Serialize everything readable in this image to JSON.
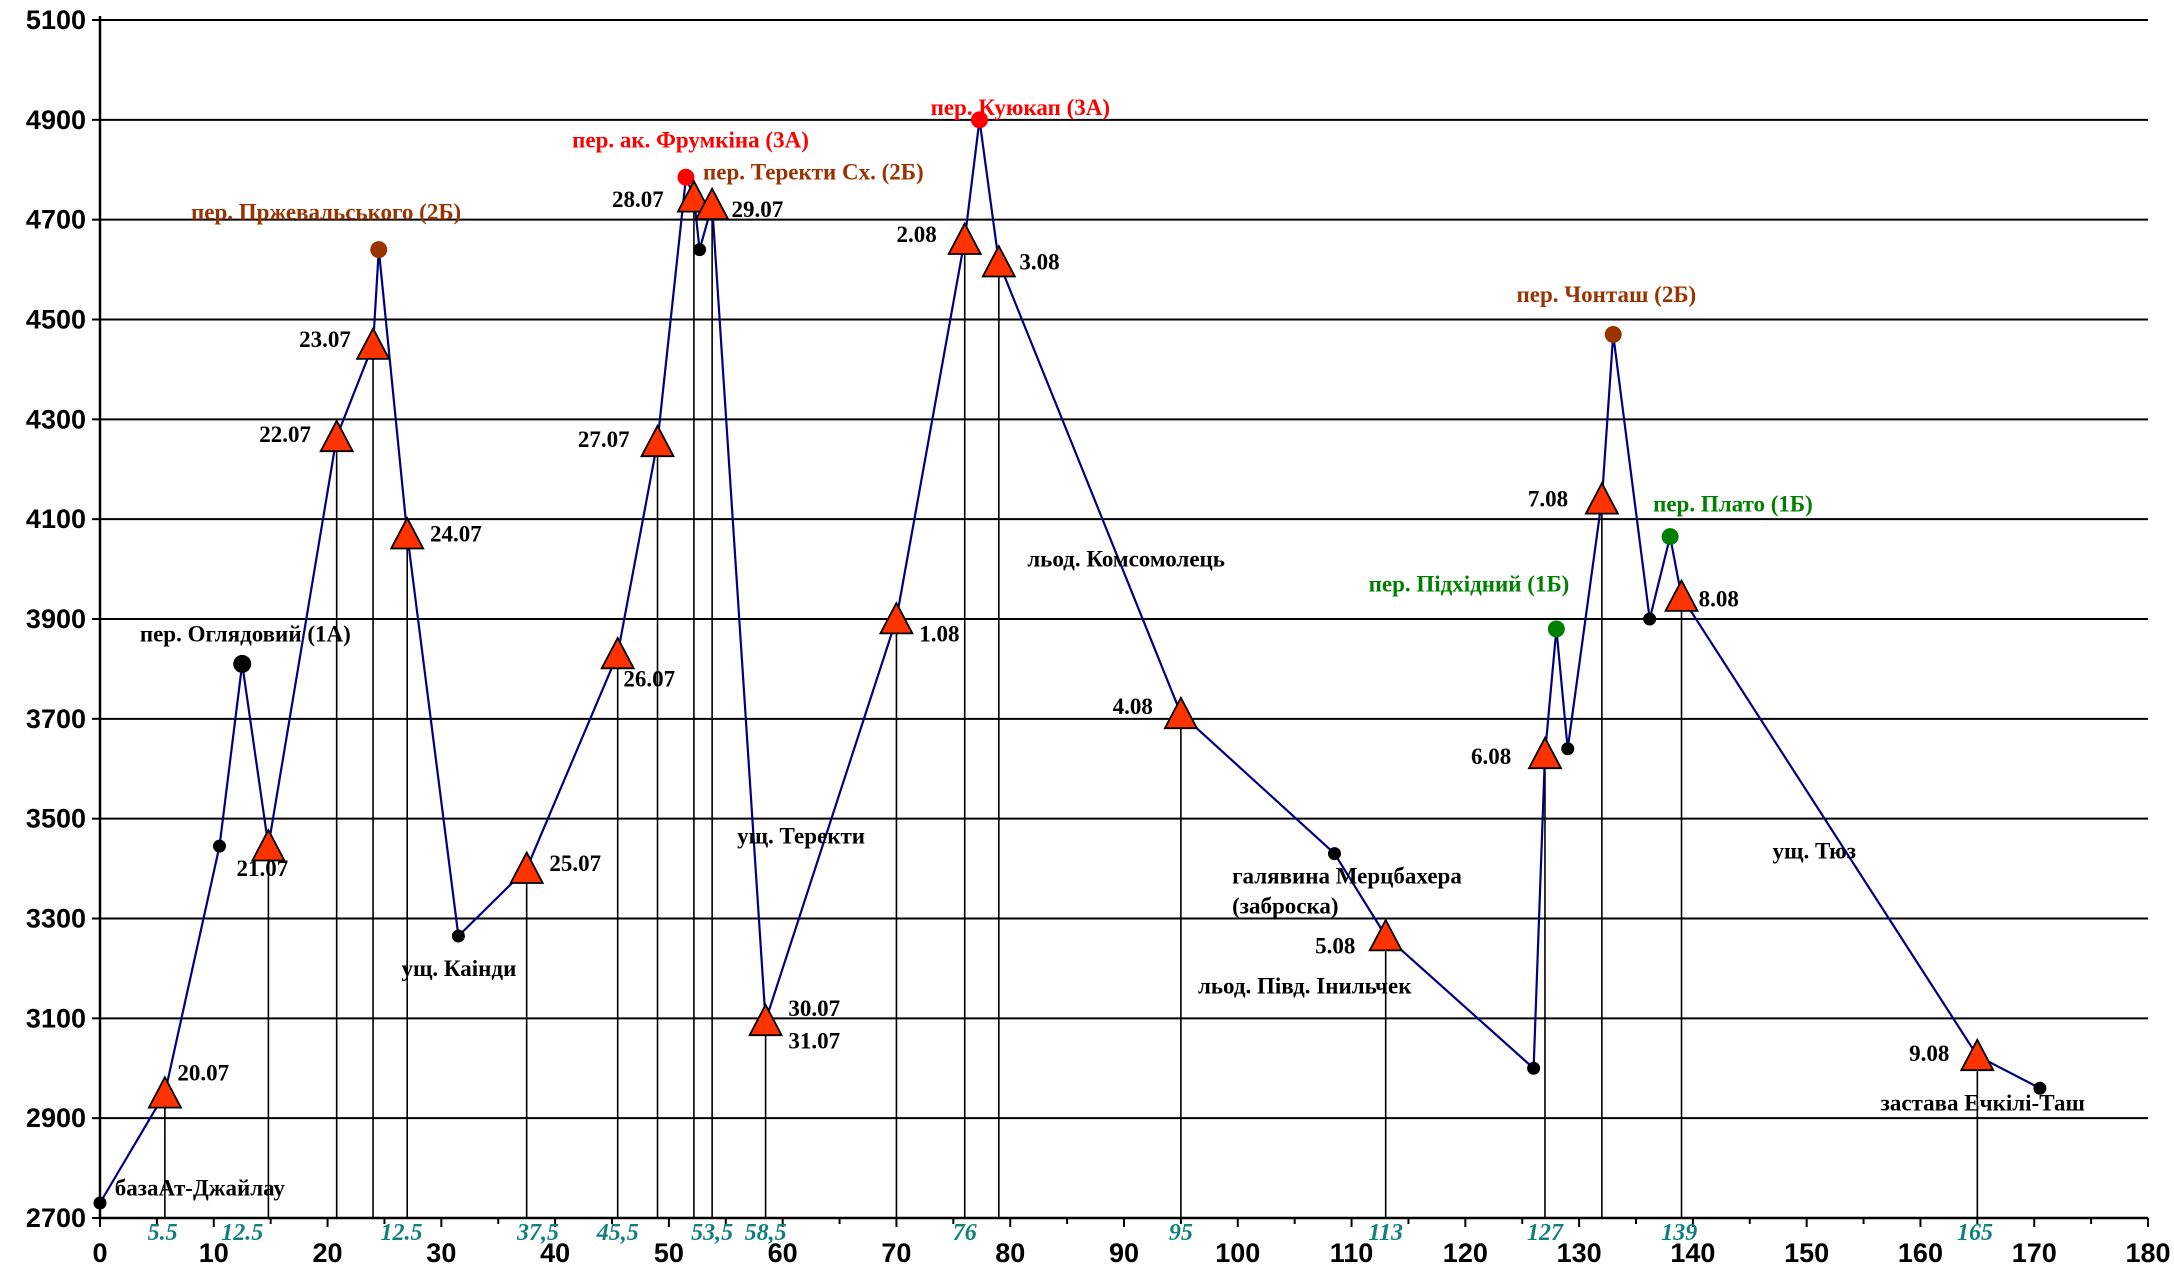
{
  "chart_data": {
    "type": "line",
    "xlim": [
      0,
      180
    ],
    "ylim": [
      2700,
      5100
    ],
    "x_ticks": [
      0,
      10,
      20,
      30,
      40,
      50,
      60,
      70,
      80,
      90,
      100,
      110,
      120,
      130,
      140,
      150,
      160,
      170,
      180
    ],
    "y_ticks": [
      2700,
      2900,
      3100,
      3300,
      3500,
      3700,
      3900,
      4100,
      4300,
      4500,
      4700,
      4900,
      5100
    ],
    "grid": "horizontal",
    "line_color": "#000080",
    "route": [
      {
        "x": 0,
        "y": 2730,
        "m": "dot"
      },
      {
        "x": 5.7,
        "y": 2950,
        "m": "tri"
      },
      {
        "x": 10.5,
        "y": 3445,
        "m": "dot"
      },
      {
        "x": 12.5,
        "y": 3810,
        "m": "dotlg"
      },
      {
        "x": 14.8,
        "y": 3445,
        "m": "tri"
      },
      {
        "x": 20.8,
        "y": 4265,
        "m": "tri"
      },
      {
        "x": 24,
        "y": 4450,
        "m": "tri"
      },
      {
        "x": 24.5,
        "y": 4640,
        "m": "brown"
      },
      {
        "x": 27,
        "y": 4070,
        "m": "tri"
      },
      {
        "x": 31.5,
        "y": 3265,
        "m": "dot"
      },
      {
        "x": 37.5,
        "y": 3400,
        "m": "tri"
      },
      {
        "x": 45.5,
        "y": 3830,
        "m": "tri"
      },
      {
        "x": 49,
        "y": 4255,
        "m": "tri"
      },
      {
        "x": 51.5,
        "y": 4785,
        "m": "red"
      },
      {
        "x": 52.2,
        "y": 4745,
        "m": "tri"
      },
      {
        "x": 52.7,
        "y": 4640,
        "m": "dot"
      },
      {
        "x": 53.8,
        "y": 4730,
        "m": "tri"
      },
      {
        "x": 58.5,
        "y": 3095,
        "m": "tri"
      },
      {
        "x": 70,
        "y": 3900,
        "m": "tri"
      },
      {
        "x": 76,
        "y": 4660,
        "m": "tri"
      },
      {
        "x": 77.3,
        "y": 4900,
        "m": "red"
      },
      {
        "x": 79,
        "y": 4615,
        "m": "tri"
      },
      {
        "x": 95,
        "y": 3710,
        "m": "tri"
      },
      {
        "x": 108.5,
        "y": 3430,
        "m": "dot"
      },
      {
        "x": 113,
        "y": 3265,
        "m": "tri"
      },
      {
        "x": 126,
        "y": 3000,
        "m": "dot"
      },
      {
        "x": 127,
        "y": 3630,
        "m": "tri"
      },
      {
        "x": 128,
        "y": 3880,
        "m": "green"
      },
      {
        "x": 129,
        "y": 3640,
        "m": "dot"
      },
      {
        "x": 132,
        "y": 4140,
        "m": "tri"
      },
      {
        "x": 133,
        "y": 4470,
        "m": "brown"
      },
      {
        "x": 136.2,
        "y": 3900,
        "m": "dot"
      },
      {
        "x": 138,
        "y": 4065,
        "m": "green"
      },
      {
        "x": 139,
        "y": 3945,
        "m": "tri"
      },
      {
        "x": 165,
        "y": 3025,
        "m": "tri"
      },
      {
        "x": 170.5,
        "y": 2960,
        "m": "dot"
      }
    ],
    "drop_lines": [
      {
        "x": 5.7,
        "y": 2950
      },
      {
        "x": 14.8,
        "y": 3445
      },
      {
        "x": 20.8,
        "y": 4265
      },
      {
        "x": 24,
        "y": 4450
      },
      {
        "x": 27,
        "y": 4070
      },
      {
        "x": 37.5,
        "y": 3400
      },
      {
        "x": 45.5,
        "y": 3830
      },
      {
        "x": 49,
        "y": 4255
      },
      {
        "x": 52.2,
        "y": 4745
      },
      {
        "x": 53.8,
        "y": 4730
      },
      {
        "x": 58.5,
        "y": 3095
      },
      {
        "x": 70,
        "y": 3900
      },
      {
        "x": 76,
        "y": 4660
      },
      {
        "x": 79,
        "y": 4615
      },
      {
        "x": 95,
        "y": 3710
      },
      {
        "x": 113,
        "y": 3265
      },
      {
        "x": 127,
        "y": 3630
      },
      {
        "x": 132,
        "y": 4140
      },
      {
        "x": 139,
        "y": 3945
      },
      {
        "x": 165,
        "y": 3025
      }
    ],
    "distance_labels": [
      {
        "text": "5.5",
        "x": 5.5
      },
      {
        "text": "12.5",
        "x": 12.5
      },
      {
        "text": "12.5",
        "x": 26.5
      },
      {
        "text": "37,5",
        "x": 38.5
      },
      {
        "text": "45,5",
        "x": 45.5
      },
      {
        "text": "53,5",
        "x": 53.8
      },
      {
        "text": "58,5",
        "x": 58.5
      },
      {
        "text": "76",
        "x": 76
      },
      {
        "text": "95",
        "x": 95
      },
      {
        "text": "113",
        "x": 113
      },
      {
        "text": "127",
        "x": 127
      },
      {
        "text": "139",
        "x": 138.8
      },
      {
        "text": "165",
        "x": 164.8
      }
    ],
    "annotations": [
      {
        "text": "базаАт-Джайлау",
        "x": 1.3,
        "y": 2745,
        "color": "#000000"
      },
      {
        "text": "20.07",
        "x": 6.8,
        "y": 2975,
        "color": "#000000"
      },
      {
        "text": "пер. Оглядовий  (1А)",
        "x": 3.5,
        "y": 3855,
        "color": "#000000"
      },
      {
        "text": "21.07",
        "x": 12,
        "y": 3385,
        "color": "#000000"
      },
      {
        "text": "22.07",
        "x": 14,
        "y": 4255,
        "color": "#000000"
      },
      {
        "text": "пер. Пржевальського (2Б)",
        "x": 8,
        "y": 4700,
        "color": "#993300"
      },
      {
        "text": "23.07",
        "x": 17.5,
        "y": 4445,
        "color": "#000000"
      },
      {
        "text": "24.07",
        "x": 29,
        "y": 4055,
        "color": "#000000"
      },
      {
        "text": "ущ. Каінди",
        "x": 26.5,
        "y": 3185,
        "color": "#000000"
      },
      {
        "text": "25.07",
        "x": 39.5,
        "y": 3395,
        "color": "#000000"
      },
      {
        "text": "26.07",
        "x": 46,
        "y": 3765,
        "color": "#000000"
      },
      {
        "text": "27.07",
        "x": 42,
        "y": 4245,
        "color": "#000000"
      },
      {
        "text": "пер. ак. Фрумкіна (3А)",
        "x": 41.5,
        "y": 4845,
        "color": "#ff0000"
      },
      {
        "text": "пер. Теректи Сх. (2Б)",
        "x": 53,
        "y": 4780,
        "color": "#993300"
      },
      {
        "text": "28.07",
        "x": 45,
        "y": 4725,
        "color": "#000000"
      },
      {
        "text": "29.07",
        "x": 55.5,
        "y": 4705,
        "color": "#000000"
      },
      {
        "text": "30.07",
        "x": 60.5,
        "y": 3105,
        "color": "#000000"
      },
      {
        "text": "31.07",
        "x": 60.5,
        "y": 3040,
        "color": "#000000"
      },
      {
        "text": "ущ. Теректи",
        "x": 56,
        "y": 3450,
        "color": "#000000"
      },
      {
        "text": "1.08",
        "x": 72,
        "y": 3855,
        "color": "#000000"
      },
      {
        "text": "2.08",
        "x": 70,
        "y": 4655,
        "color": "#000000"
      },
      {
        "text": "пер.  Куюкап (3А)",
        "x": 73,
        "y": 4910,
        "color": "#ff0000"
      },
      {
        "text": "3.08",
        "x": 80.8,
        "y": 4600,
        "color": "#000000"
      },
      {
        "text": "льод. Комсомолець",
        "x": 81.5,
        "y": 4005,
        "color": "#000000"
      },
      {
        "text": "4.08",
        "x": 89,
        "y": 3710,
        "color": "#000000"
      },
      {
        "text": "галявина Мерцбахера",
        "x": 99.5,
        "y": 3370,
        "color": "#000000"
      },
      {
        "text": "(заброска)",
        "x": 99.5,
        "y": 3310,
        "color": "#000000"
      },
      {
        "text": "5.08",
        "x": 106.8,
        "y": 3230,
        "color": "#000000"
      },
      {
        "text": "льод. Півд. Інильчек",
        "x": 96.5,
        "y": 3150,
        "color": "#000000"
      },
      {
        "text": "6.08",
        "x": 120.5,
        "y": 3610,
        "color": "#000000"
      },
      {
        "text": "пер. Підхідний (1Б)",
        "x": 111.5,
        "y": 3955,
        "color": "#008000"
      },
      {
        "text": "пер. Чонташ (2Б)",
        "x": 124.5,
        "y": 4535,
        "color": "#993300"
      },
      {
        "text": "7.08",
        "x": 125.5,
        "y": 4125,
        "color": "#000000"
      },
      {
        "text": "пер. Плато (1Б)",
        "x": 136.5,
        "y": 4115,
        "color": "#008000"
      },
      {
        "text": "8.08",
        "x": 140.5,
        "y": 3925,
        "color": "#000000"
      },
      {
        "text": "ущ. Тюз",
        "x": 147,
        "y": 3420,
        "color": "#000000"
      },
      {
        "text": "9.08",
        "x": 159,
        "y": 3015,
        "color": "#000000"
      },
      {
        "text": "застава Ечкілі-Таш",
        "x": 156.5,
        "y": 2915,
        "color": "#000000"
      }
    ]
  }
}
